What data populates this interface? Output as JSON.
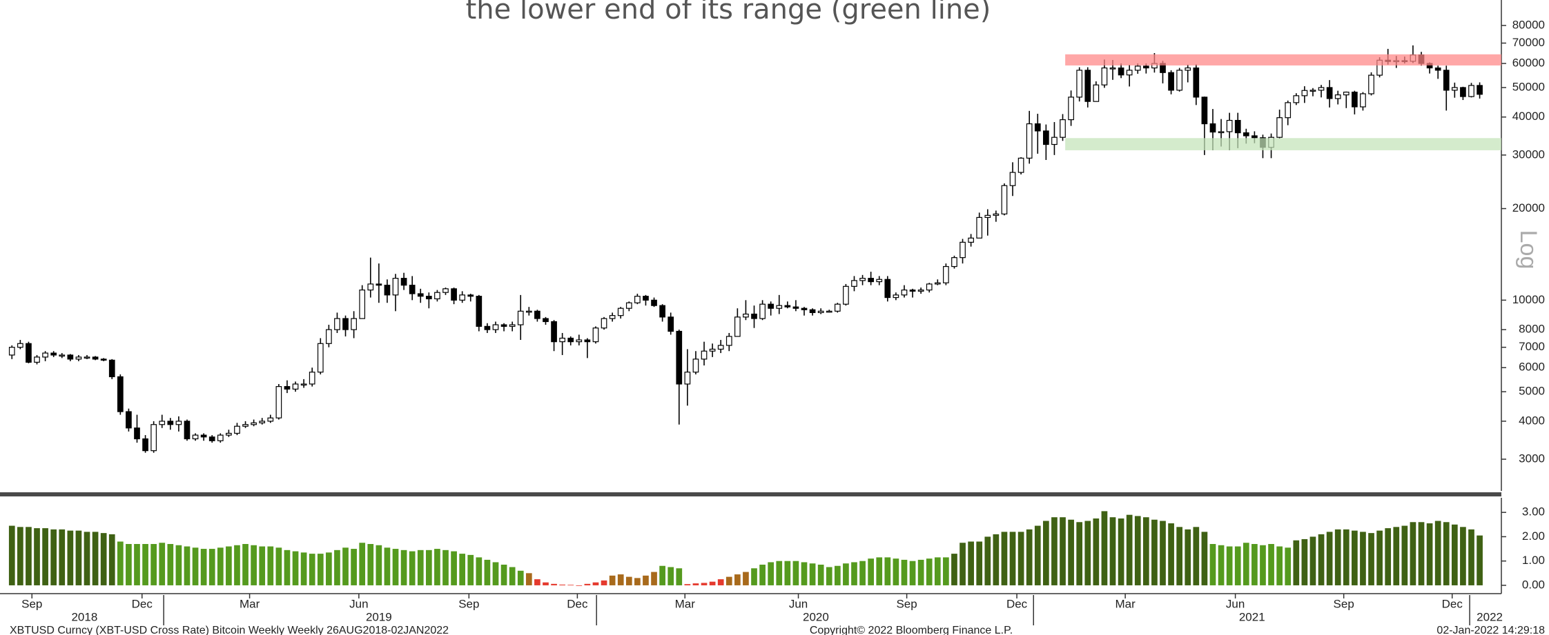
{
  "chart_data": [
    {
      "type": "candlestick",
      "annotation": "the lower end of its range (green line)",
      "y_label": "Log",
      "log": true,
      "ylim": [
        2360,
        97000
      ],
      "xlim": [
        -1.43,
        178.6
      ],
      "yticks": [
        3000,
        4000,
        5000,
        6000,
        7000,
        8000,
        10000,
        20000,
        30000,
        40000,
        50000,
        60000,
        70000,
        80000
      ],
      "up_color": "#ffffff",
      "down_color": "#000000",
      "bands": [
        {
          "low": 59100,
          "high": 64300,
          "from": 126.3,
          "color": "#ff8585"
        },
        {
          "low": 31100,
          "high": 34100,
          "from": 126.3,
          "color": "#c4e3b8"
        }
      ],
      "open": [
        6600,
        7000,
        7200,
        6250,
        6500,
        6700,
        6600,
        6600,
        6400,
        6500,
        6500,
        6400,
        6350,
        5600,
        4300,
        3800,
        3500,
        3200,
        3900,
        4000,
        3900,
        4000,
        3500,
        3600,
        3550,
        3450,
        3600,
        3650,
        3850,
        3900,
        3950,
        4000,
        4100,
        5200,
        5100,
        5300,
        5300,
        5800,
        7200,
        8000,
        8700,
        8000,
        8700,
        10800,
        11300,
        11200,
        10400,
        11800,
        11200,
        10500,
        10300,
        10100,
        10600,
        10900,
        10000,
        10400,
        10300,
        8200,
        8000,
        8300,
        8200,
        8300,
        9200,
        9200,
        8700,
        8500,
        7300,
        7500,
        7300,
        7400,
        7300,
        8100,
        8700,
        8900,
        9400,
        9800,
        10300,
        10000,
        9600,
        8800,
        7900,
        5300,
        5800,
        6400,
        6800,
        6900,
        7100,
        7600,
        8800,
        9000,
        8700,
        9700,
        9400,
        9600,
        9500,
        9400,
        9300,
        9100,
        9200,
        9200,
        9700,
        11100,
        11600,
        11800,
        11500,
        11700,
        10200,
        10400,
        10800,
        10700,
        10800,
        11300,
        11400,
        12900,
        13800,
        15500,
        16000,
        18700,
        19000,
        19200,
        23800,
        26300,
        29300,
        38000,
        36000,
        32500,
        34300,
        39200,
        46500,
        57000,
        45000,
        51000,
        58000,
        58000,
        55000,
        57000,
        58800,
        58000,
        60000,
        56000,
        49000,
        57000,
        58000,
        46500,
        38000,
        35700,
        35800,
        39000,
        35500,
        34700,
        34200,
        31800,
        34300,
        39800,
        44600,
        47000,
        48900,
        49000,
        50000,
        46000,
        47300,
        48300,
        43200,
        47700,
        54900,
        61500,
        60900,
        61300,
        61000,
        64000,
        60000,
        58000,
        57000,
        49000,
        50000,
        46700,
        50800
      ],
      "high": [
        7100,
        7400,
        7300,
        6600,
        6800,
        6800,
        6700,
        6650,
        6600,
        6600,
        6550,
        6450,
        6400,
        5700,
        4400,
        4200,
        3600,
        4000,
        4200,
        4100,
        4150,
        4050,
        3650,
        3650,
        3600,
        3650,
        3750,
        3950,
        4000,
        4050,
        4100,
        4200,
        5300,
        5450,
        5400,
        5500,
        6000,
        7500,
        8300,
        9100,
        8900,
        9200,
        11200,
        13800,
        13200,
        11700,
        12200,
        12300,
        12000,
        10900,
        10600,
        10800,
        11000,
        11000,
        10700,
        10500,
        10400,
        8400,
        8500,
        8400,
        8500,
        10400,
        9500,
        9300,
        8800,
        8600,
        7800,
        7600,
        7700,
        7500,
        8200,
        8800,
        9100,
        9500,
        9900,
        10500,
        10400,
        10200,
        9700,
        9100,
        8000,
        6900,
        6800,
        7300,
        7200,
        7400,
        7800,
        9400,
        10000,
        9600,
        10000,
        9900,
        10400,
        9900,
        10000,
        9500,
        9400,
        9400,
        9300,
        9800,
        11300,
        12000,
        12100,
        12400,
        12000,
        12000,
        10600,
        11200,
        10900,
        11000,
        11400,
        11700,
        13200,
        14000,
        15900,
        16500,
        19400,
        19900,
        19700,
        24200,
        28400,
        29500,
        41900,
        41000,
        37800,
        38500,
        40900,
        48900,
        58300,
        58300,
        52400,
        61800,
        61600,
        60000,
        59400,
        60000,
        60000,
        64900,
        61200,
        57000,
        58000,
        59500,
        59600,
        46700,
        42500,
        39400,
        41300,
        41300,
        36600,
        35900,
        35000,
        35300,
        42300,
        45300,
        47900,
        50500,
        49800,
        51000,
        52900,
        48800,
        48500,
        48800,
        48300,
        56100,
        62900,
        67000,
        63500,
        63200,
        68800,
        65500,
        60500,
        59000,
        59000,
        51900,
        50300,
        51800,
        52000
      ],
      "low": [
        6400,
        6900,
        6200,
        6150,
        6300,
        6500,
        6450,
        6300,
        6300,
        6400,
        6350,
        6300,
        5500,
        4200,
        3700,
        3400,
        3150,
        3150,
        3800,
        3750,
        3700,
        3450,
        3450,
        3450,
        3400,
        3400,
        3550,
        3600,
        3800,
        3850,
        3900,
        3950,
        4050,
        4950,
        5000,
        5150,
        5200,
        5700,
        7000,
        7800,
        7600,
        7500,
        8700,
        10200,
        9800,
        9800,
        9200,
        10800,
        10000,
        9800,
        9400,
        9900,
        10400,
        9700,
        9800,
        9900,
        7900,
        7800,
        7800,
        7900,
        7900,
        7400,
        8900,
        8500,
        8300,
        6800,
        6600,
        7100,
        7100,
        6450,
        7200,
        8000,
        8500,
        8700,
        9200,
        9700,
        9600,
        9500,
        8500,
        7700,
        3900,
        4500,
        5700,
        6100,
        6500,
        6700,
        6800,
        7600,
        8600,
        8100,
        8600,
        8900,
        9000,
        9400,
        9200,
        8900,
        8900,
        9000,
        9100,
        9100,
        9600,
        10700,
        11200,
        11200,
        11200,
        9900,
        10000,
        10200,
        10200,
        10500,
        10600,
        11200,
        11200,
        12700,
        13200,
        15000,
        16000,
        16300,
        18100,
        19000,
        22000,
        25900,
        28100,
        30300,
        28900,
        30000,
        33400,
        37400,
        45000,
        43000,
        44900,
        49900,
        53000,
        53700,
        50400,
        55500,
        55600,
        56000,
        51600,
        47500,
        48500,
        52000,
        43800,
        30000,
        31100,
        32000,
        31100,
        31600,
        32700,
        32800,
        29300,
        29300,
        34000,
        37600,
        43800,
        44500,
        46800,
        46400,
        43000,
        44000,
        42800,
        40800,
        42000,
        47100,
        54000,
        59500,
        58000,
        60000,
        60200,
        59000,
        55600,
        53400,
        42000,
        46300,
        45500,
        46400,
        46000
      ],
      "close": [
        7000,
        7200,
        6250,
        6500,
        6700,
        6600,
        6600,
        6400,
        6500,
        6500,
        6400,
        6350,
        5600,
        4300,
        3800,
        3500,
        3200,
        3900,
        4000,
        3900,
        4000,
        3500,
        3600,
        3550,
        3450,
        3600,
        3650,
        3850,
        3900,
        3950,
        4000,
        4100,
        5200,
        5100,
        5300,
        5300,
        5800,
        7200,
        8000,
        8700,
        8000,
        8700,
        10800,
        11300,
        11200,
        10400,
        11800,
        11200,
        10500,
        10300,
        10100,
        10600,
        10900,
        10000,
        10400,
        10300,
        8200,
        8000,
        8300,
        8200,
        8300,
        9200,
        9200,
        8700,
        8500,
        7300,
        7500,
        7300,
        7400,
        7300,
        8100,
        8700,
        8900,
        9400,
        9800,
        10300,
        10000,
        9600,
        8800,
        7900,
        5300,
        5800,
        6400,
        6800,
        6900,
        7100,
        7600,
        8800,
        9000,
        8700,
        9700,
        9400,
        9600,
        9500,
        9400,
        9300,
        9100,
        9200,
        9200,
        9700,
        11100,
        11600,
        11800,
        11500,
        11700,
        10200,
        10400,
        10800,
        10700,
        10800,
        11300,
        11400,
        12900,
        13800,
        15500,
        16000,
        18700,
        19000,
        19200,
        23800,
        26300,
        29300,
        38000,
        36000,
        32500,
        34300,
        39200,
        46500,
        57000,
        45000,
        51000,
        58000,
        58000,
        55000,
        57000,
        58800,
        58000,
        60000,
        56000,
        49000,
        57000,
        58000,
        46500,
        38000,
        35700,
        35800,
        39000,
        35500,
        34700,
        34200,
        31800,
        34300,
        39800,
        44600,
        47000,
        48900,
        49000,
        50000,
        46000,
        47300,
        48300,
        43200,
        47700,
        54900,
        61500,
        60900,
        61300,
        61000,
        64000,
        60000,
        58000,
        57000,
        49000,
        50000,
        46700,
        50800,
        47500
      ]
    },
    {
      "type": "bar",
      "ylim": [
        -0.2,
        3.6
      ],
      "xlim": [
        -1.43,
        178.6
      ],
      "yticks": [
        {
          "value": 0,
          "label": "0.00"
        },
        {
          "value": 1,
          "label": "1.00"
        },
        {
          "value": 2,
          "label": "2.00"
        },
        {
          "value": 3,
          "label": "3.00"
        }
      ],
      "values": [
        2.45,
        2.4,
        2.4,
        2.35,
        2.35,
        2.3,
        2.3,
        2.25,
        2.25,
        2.2,
        2.2,
        2.15,
        2.1,
        1.8,
        1.7,
        1.7,
        1.7,
        1.7,
        1.75,
        1.7,
        1.65,
        1.6,
        1.55,
        1.5,
        1.5,
        1.55,
        1.6,
        1.65,
        1.7,
        1.65,
        1.6,
        1.6,
        1.55,
        1.45,
        1.4,
        1.35,
        1.3,
        1.3,
        1.35,
        1.45,
        1.55,
        1.5,
        1.75,
        1.7,
        1.65,
        1.55,
        1.5,
        1.45,
        1.4,
        1.45,
        1.45,
        1.5,
        1.45,
        1.4,
        1.3,
        1.25,
        1.15,
        1.05,
        0.95,
        0.85,
        0.75,
        0.6,
        0.5,
        0.25,
        0.12,
        0.06,
        0.03,
        0.02,
        -0.02,
        0.06,
        0.12,
        0.2,
        0.4,
        0.45,
        0.35,
        0.3,
        0.4,
        0.55,
        0.8,
        0.75,
        0.7,
        0.05,
        0.08,
        0.1,
        0.15,
        0.25,
        0.35,
        0.45,
        0.55,
        0.7,
        0.85,
        0.95,
        1,
        1,
        1,
        0.95,
        0.9,
        0.85,
        0.75,
        0.8,
        0.9,
        0.95,
        1,
        1.1,
        1.15,
        1.15,
        1.1,
        1.05,
        1,
        1.05,
        1.1,
        1.15,
        1.15,
        1.3,
        1.75,
        1.8,
        1.8,
        2,
        2.1,
        2.2,
        2.2,
        2.2,
        2.3,
        2.45,
        2.65,
        2.8,
        2.8,
        2.7,
        2.6,
        2.65,
        2.75,
        3.05,
        2.8,
        2.75,
        2.9,
        2.85,
        2.8,
        2.7,
        2.65,
        2.55,
        2.4,
        2.3,
        2.4,
        2.2,
        1.7,
        1.65,
        1.6,
        1.6,
        1.75,
        1.7,
        1.65,
        1.7,
        1.6,
        1.55,
        1.85,
        1.9,
        2,
        2.1,
        2.2,
        2.3,
        2.3,
        2.25,
        2.2,
        2.15,
        2.25,
        2.35,
        2.4,
        2.45,
        2.6,
        2.6,
        2.55,
        2.65,
        2.6,
        2.5,
        2.4,
        2.3,
        2.05
      ],
      "colors": [
        "#3f6114",
        "#3f6114",
        "#3f6114",
        "#3f6114",
        "#3f6114",
        "#3f6114",
        "#3f6114",
        "#3f6114",
        "#3f6114",
        "#3f6114",
        "#3f6114",
        "#3f6114",
        "#3f6114",
        "#559a1e",
        "#559a1e",
        "#559a1e",
        "#559a1e",
        "#559a1e",
        "#559a1e",
        "#559a1e",
        "#559a1e",
        "#559a1e",
        "#559a1e",
        "#559a1e",
        "#559a1e",
        "#559a1e",
        "#559a1e",
        "#559a1e",
        "#559a1e",
        "#559a1e",
        "#559a1e",
        "#559a1e",
        "#559a1e",
        "#559a1e",
        "#559a1e",
        "#559a1e",
        "#559a1e",
        "#559a1e",
        "#559a1e",
        "#559a1e",
        "#559a1e",
        "#559a1e",
        "#559a1e",
        "#559a1e",
        "#559a1e",
        "#559a1e",
        "#559a1e",
        "#559a1e",
        "#559a1e",
        "#559a1e",
        "#559a1e",
        "#559a1e",
        "#559a1e",
        "#559a1e",
        "#559a1e",
        "#559a1e",
        "#559a1e",
        "#559a1e",
        "#559a1e",
        "#559a1e",
        "#559a1e",
        "#559a1e",
        "#a86a1c",
        "#e53a2e",
        "#e53a2e",
        "#e53a2e",
        "#e53a2e",
        "#e53a2e",
        "#e53a2e",
        "#e53a2e",
        "#e53a2e",
        "#e53a2e",
        "#a86a1c",
        "#a86a1c",
        "#a86a1c",
        "#a86a1c",
        "#a86a1c",
        "#a86a1c",
        "#559a1e",
        "#559a1e",
        "#559a1e",
        "#e53a2e",
        "#e53a2e",
        "#e53a2e",
        "#e53a2e",
        "#e53a2e",
        "#a86a1c",
        "#a86a1c",
        "#a86a1c",
        "#559a1e",
        "#559a1e",
        "#559a1e",
        "#559a1e",
        "#559a1e",
        "#559a1e",
        "#559a1e",
        "#559a1e",
        "#559a1e",
        "#559a1e",
        "#559a1e",
        "#559a1e",
        "#559a1e",
        "#559a1e",
        "#559a1e",
        "#559a1e",
        "#559a1e",
        "#559a1e",
        "#559a1e",
        "#559a1e",
        "#559a1e",
        "#559a1e",
        "#559a1e",
        "#559a1e",
        "#3f6114",
        "#3f6114",
        "#3f6114",
        "#3f6114",
        "#3f6114",
        "#3f6114",
        "#3f6114",
        "#3f6114",
        "#3f6114",
        "#3f6114",
        "#3f6114",
        "#3f6114",
        "#3f6114",
        "#3f6114",
        "#3f6114",
        "#3f6114",
        "#3f6114",
        "#3f6114",
        "#3f6114",
        "#3f6114",
        "#3f6114",
        "#3f6114",
        "#3f6114",
        "#3f6114",
        "#3f6114",
        "#3f6114",
        "#3f6114",
        "#3f6114",
        "#3f6114",
        "#3f6114",
        "#3f6114",
        "#559a1e",
        "#559a1e",
        "#559a1e",
        "#559a1e",
        "#559a1e",
        "#559a1e",
        "#559a1e",
        "#559a1e",
        "#559a1e",
        "#559a1e",
        "#3f6114",
        "#3f6114",
        "#3f6114",
        "#3f6114",
        "#3f6114",
        "#3f6114",
        "#3f6114",
        "#3f6114",
        "#3f6114",
        "#3f6114",
        "#3f6114",
        "#3f6114",
        "#3f6114",
        "#3f6114",
        "#3f6114",
        "#3f6114",
        "#3f6114",
        "#3f6114",
        "#3f6114",
        "#3f6114",
        "#3f6114",
        "#3f6114",
        "#3f6114"
      ],
      "xticks": [
        {
          "value": 2.4,
          "label": "Sep"
        },
        {
          "value": 15.6,
          "label": "Dec"
        },
        {
          "value": 28.5,
          "label": "Mar"
        },
        {
          "value": 41.6,
          "label": "Jun"
        },
        {
          "value": 54.8,
          "label": "Sep"
        },
        {
          "value": 67.8,
          "label": "Dec"
        },
        {
          "value": 80.7,
          "label": "Mar"
        },
        {
          "value": 94.3,
          "label": "Jun"
        },
        {
          "value": 107.3,
          "label": "Sep"
        },
        {
          "value": 120.5,
          "label": "Dec"
        },
        {
          "value": 133.5,
          "label": "Mar"
        },
        {
          "value": 146.7,
          "label": "Jun"
        },
        {
          "value": 159.7,
          "label": "Sep"
        },
        {
          "value": 172.7,
          "label": "Dec"
        }
      ],
      "year_ticks": [
        18.2,
        70.1,
        122.5,
        174.8
      ],
      "years": [
        {
          "value": 8.7,
          "label": "2018"
        },
        {
          "value": 44,
          "label": "2019"
        },
        {
          "value": 96.4,
          "label": "2020"
        },
        {
          "value": 148.7,
          "label": "2021"
        },
        {
          "value": 177.2,
          "label": "2022"
        }
      ]
    }
  ],
  "footer": {
    "left": "XBTUSD Curncy (XBT-USD Cross Rate) Bitcoin Weekly  Weekly 26AUG2018-02JAN2022",
    "center": "Copyright© 2022 Bloomberg Finance L.P.",
    "right": "02-Jan-2022 14:29:18"
  }
}
